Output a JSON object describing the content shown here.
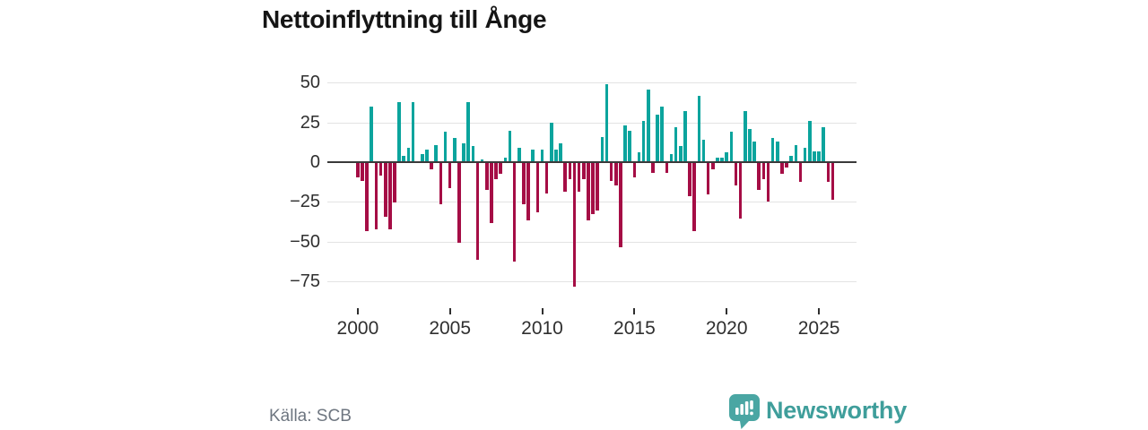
{
  "title": "Nettoinflyttning till Ånge",
  "source": "Källa: SCB",
  "brand": {
    "name": "Newsworthy",
    "color": "#3f9e9b",
    "icon": "newsworthy-speech-bubble-chart-icon"
  },
  "colors": {
    "positive_bar": "#0ba49d",
    "negative_bar": "#a50d45",
    "gridline": "#e3e3e3",
    "zero_line": "#3a3a3a",
    "axis_text": "#2f2f2f",
    "muted_text": "#6e7680"
  },
  "chart_data": {
    "type": "bar",
    "title": "Nettoinflyttning till Ånge",
    "frequency": "quarterly",
    "start_year": 2000,
    "xlabel": "",
    "ylabel": "",
    "ylim": [
      -85,
      55
    ],
    "grid": true,
    "y_gridlines": [
      50,
      25,
      0,
      -25,
      -50,
      -75
    ],
    "y_tick_labels": [
      "50",
      "25",
      "0",
      "−25",
      "−50",
      "−75"
    ],
    "x_tick_labels": [
      "2000",
      "2005",
      "2010",
      "2015",
      "2020",
      "2025"
    ],
    "values": [
      -9,
      -11,
      -43,
      35,
      -42,
      -8,
      -34,
      -42,
      -25,
      38,
      4,
      9,
      38,
      0,
      5,
      8,
      -4,
      11,
      -26,
      19,
      -16,
      15,
      -50,
      12,
      38,
      10,
      -61,
      2,
      -17,
      -38,
      -10,
      -7,
      3,
      20,
      -62,
      9,
      -26,
      -36,
      8,
      -31,
      8,
      -19,
      25,
      8,
      12,
      -18,
      -10,
      -78,
      -18,
      -10,
      -36,
      -32,
      -30,
      16,
      49,
      -11,
      -14,
      -53,
      23,
      20,
      -9,
      6,
      26,
      46,
      -6,
      30,
      35,
      -6,
      5,
      22,
      10,
      32,
      -21,
      -43,
      42,
      14,
      -20,
      -4,
      3,
      3,
      6,
      19,
      -14,
      -35,
      32,
      21,
      13,
      -17,
      -10,
      -24,
      15,
      13,
      -7,
      -3,
      4,
      11,
      -12,
      9,
      26,
      7,
      7,
      22,
      -12,
      -23
    ],
    "positive_color": "#0ba49d",
    "negative_color": "#a50d45",
    "legend": null
  }
}
